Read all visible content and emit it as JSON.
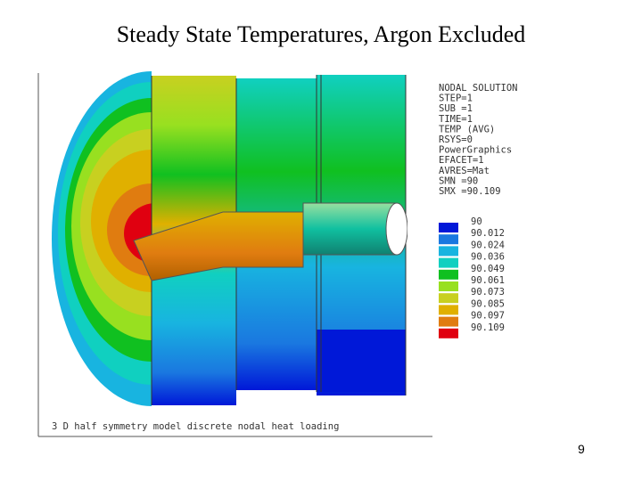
{
  "title": "Steady State Temperatures, Argon Excluded",
  "plot": {
    "header": [
      "NODAL SOLUTION",
      "STEP=1",
      "SUB =1",
      "TIME=1",
      "TEMP       (AVG)",
      "RSYS=0",
      "PowerGraphics",
      "EFACET=1",
      "AVRES=Mat",
      "SMN =90",
      "SMX =90.109"
    ],
    "legend": [
      {
        "label": "90",
        "color": "#0018d8"
      },
      {
        "label": "90.012",
        "color": "#1a78e0"
      },
      {
        "label": "90.024",
        "color": "#18b4e0"
      },
      {
        "label": "90.036",
        "color": "#10d0c0"
      },
      {
        "label": "90.049",
        "color": "#10c020"
      },
      {
        "label": "90.061",
        "color": "#98e020"
      },
      {
        "label": "90.073",
        "color": "#c8d020"
      },
      {
        "label": "90.085",
        "color": "#e0b000"
      },
      {
        "label": "90.097",
        "color": "#e07c10"
      },
      {
        "label": "90.109",
        "color": "#e00010"
      }
    ],
    "caption": "3 D half symmetry model discrete nodal heat loading"
  },
  "page_number": "9"
}
